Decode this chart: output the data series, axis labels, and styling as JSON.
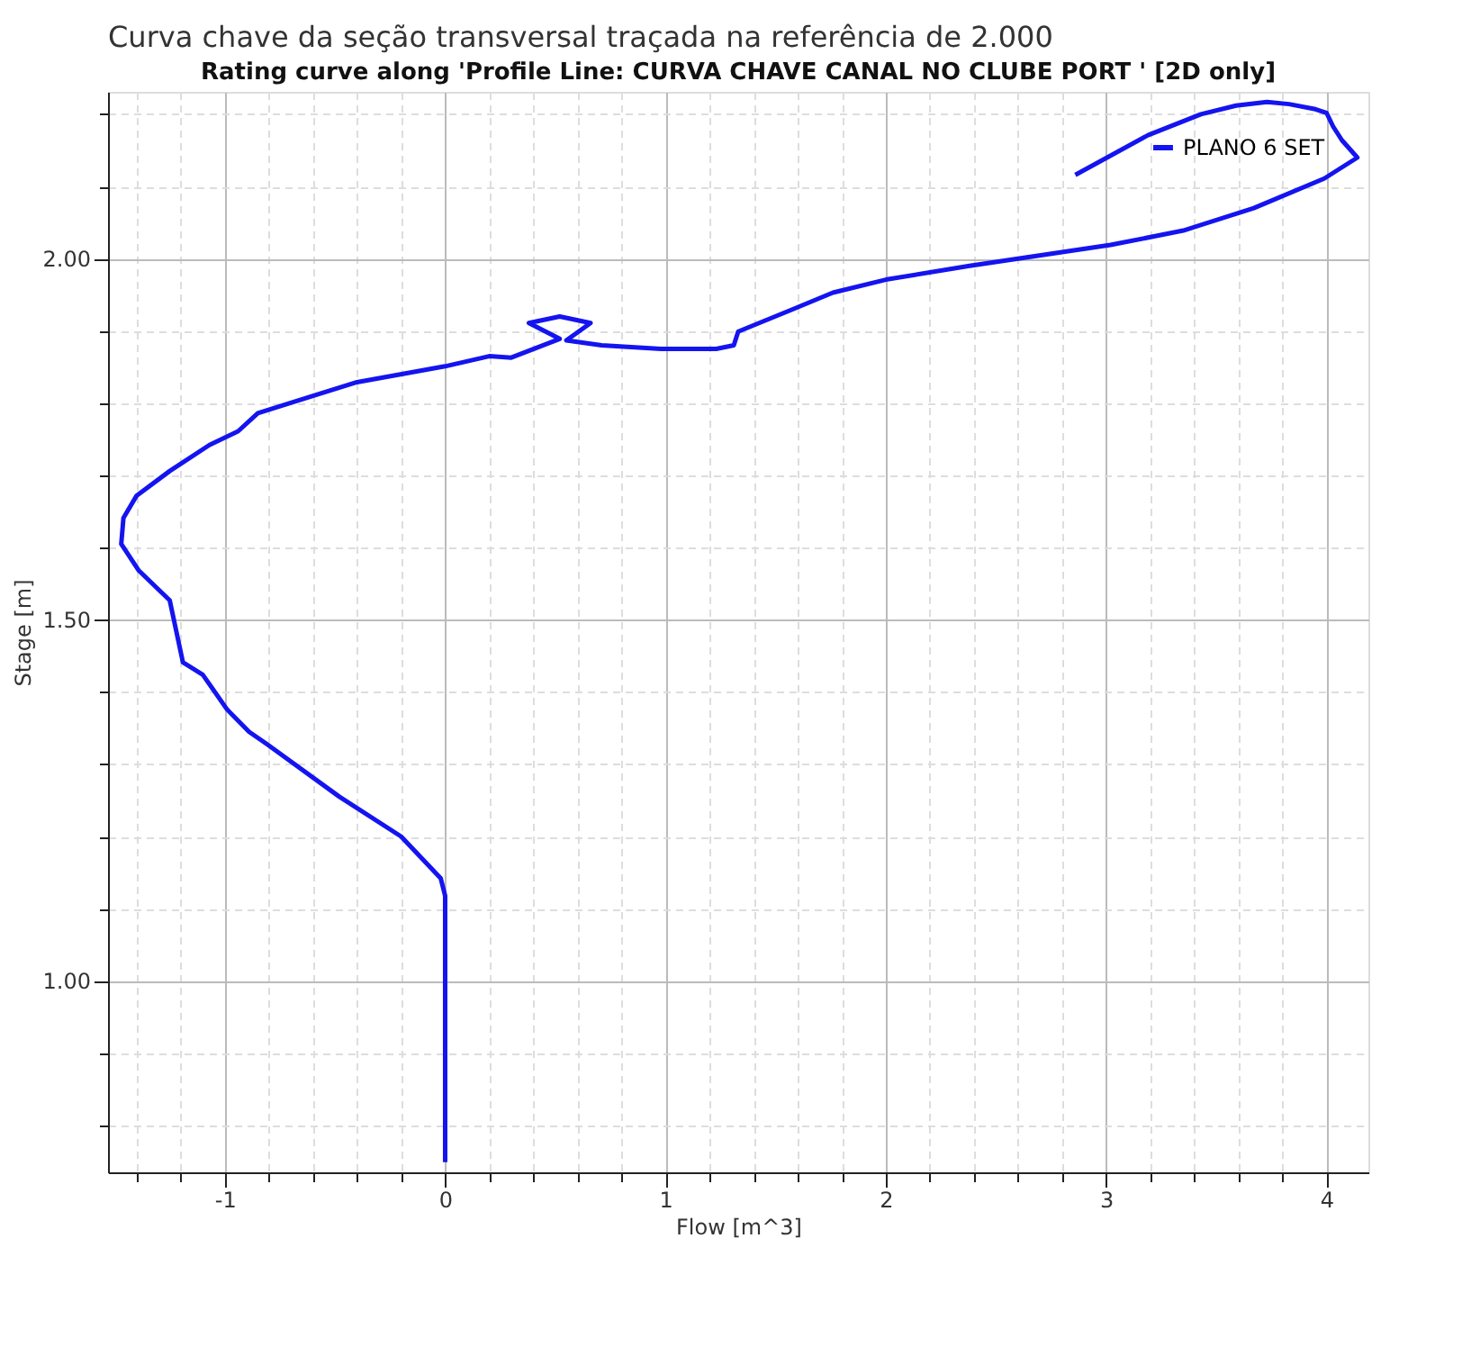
{
  "chart_data": {
    "type": "line",
    "title": "Rating curve along 'Profile Line: CURVA CHAVE CANAL NO CLUBE PORT ' [2D only]",
    "annotations": [
      "Curva chave da seção transversal traçada na referência de 2.000"
    ],
    "xlabel": "Flow [m^3]",
    "ylabel": "Stage [m]",
    "series": [
      {
        "name": "PLANO 6 SET",
        "color": "#1414f0",
        "x": [
          0,
          0,
          -0.02,
          -0.2,
          -0.48,
          -0.81,
          -0.89,
          -0.99,
          -1.1,
          -1.19,
          -1.25,
          -1.39,
          -1.47,
          -1.46,
          -1.4,
          -1.25,
          -1.07,
          -0.94,
          -0.85,
          -0.58,
          -0.4,
          0,
          0.2,
          0.3,
          0.52,
          0.38,
          0.52,
          0.66,
          0.55,
          0.71,
          0.98,
          1.23,
          1.31,
          1.33,
          1.57,
          1.76,
          2.0,
          2.38,
          3.02,
          3.35,
          3.67,
          3.99,
          4.14,
          4.07,
          4.03,
          4.0,
          3.95,
          3.83,
          3.73,
          3.59,
          3.43,
          3.19,
          2.86
        ],
        "values": [
          0.749,
          1.118,
          1.142,
          1.2,
          1.255,
          1.328,
          1.345,
          1.376,
          1.424,
          1.441,
          1.527,
          1.568,
          1.605,
          1.641,
          1.672,
          1.706,
          1.742,
          1.761,
          1.786,
          1.812,
          1.829,
          1.851,
          1.865,
          1.863,
          1.889,
          1.911,
          1.92,
          1.911,
          1.887,
          1.88,
          1.875,
          1.875,
          1.88,
          1.899,
          1.929,
          1.953,
          1.971,
          1.99,
          2.019,
          2.039,
          2.07,
          2.111,
          2.14,
          2.164,
          2.183,
          2.202,
          2.207,
          2.214,
          2.217,
          2.212,
          2.2,
          2.171,
          2.116
        ]
      }
    ],
    "xlim": [
      -1.53,
      4.19
    ],
    "xticks": [
      {
        "value": -1.4,
        "label": null
      },
      {
        "value": -1.2,
        "label": null
      },
      -1,
      {
        "value": -0.8,
        "label": null
      },
      {
        "value": -0.6,
        "label": null
      },
      {
        "value": -0.4,
        "label": null
      },
      {
        "value": -0.2,
        "label": null
      },
      0,
      {
        "value": 0.2,
        "label": null
      },
      {
        "value": 0.4,
        "label": null
      },
      {
        "value": 0.6,
        "label": null
      },
      {
        "value": 0.8,
        "label": null
      },
      1,
      {
        "value": 1.2,
        "label": null
      },
      {
        "value": 1.4,
        "label": null
      },
      {
        "value": 1.6,
        "label": null
      },
      {
        "value": 1.8,
        "label": null
      },
      2,
      {
        "value": 2.2,
        "label": null
      },
      {
        "value": 2.4,
        "label": null
      },
      {
        "value": 2.6,
        "label": null
      },
      {
        "value": 2.8,
        "label": null
      },
      3,
      {
        "value": 3.2,
        "label": null
      },
      {
        "value": 3.4,
        "label": null
      },
      {
        "value": 3.6,
        "label": null
      },
      {
        "value": 3.8,
        "label": null
      },
      4
    ],
    "ylim": [
      0.735,
      2.231
    ],
    "yticks": [
      {
        "value": 0.8,
        "label": null
      },
      {
        "value": 0.9,
        "label": null
      },
      {
        "value": 1.0,
        "label": "1.00"
      },
      {
        "value": 1.1,
        "label": null
      },
      {
        "value": 1.2,
        "label": null
      },
      {
        "value": 1.3,
        "label": null
      },
      {
        "value": 1.4,
        "label": null
      },
      {
        "value": 1.5,
        "label": "1.50"
      },
      {
        "value": 1.6,
        "label": null
      },
      {
        "value": 1.7,
        "label": null
      },
      {
        "value": 1.8,
        "label": null
      },
      {
        "value": 1.9,
        "label": null
      },
      {
        "value": 2.0,
        "label": "2.00"
      },
      {
        "value": 2.1,
        "label": null
      },
      {
        "value": 2.2,
        "label": null
      }
    ],
    "grid": true,
    "legend": "top right",
    "line_style": "solid",
    "marker": "none"
  }
}
